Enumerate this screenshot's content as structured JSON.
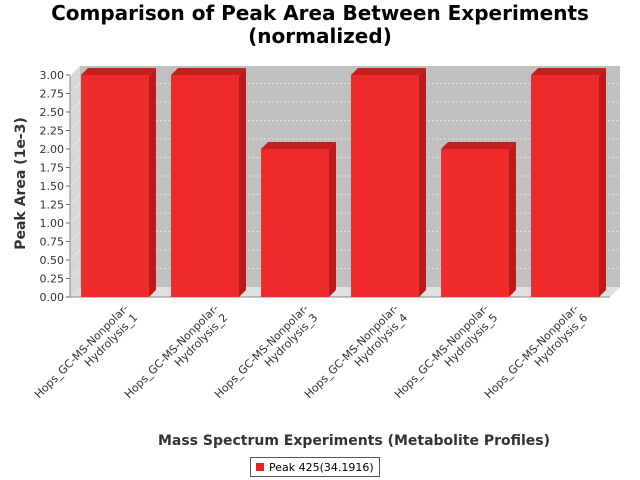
{
  "chart_data": {
    "type": "bar",
    "title": "Comparison of Peak Area Between Experiments",
    "subtitle": "(normalized)",
    "xlabel": "Mass Spectrum Experiments (Metabolite Profiles)",
    "ylabel": "Peak Area (1e-3)",
    "categories": [
      "Hops_GC-MS-Nonpolar-Hydrolysis_1",
      "Hops_GC-MS-Nonpolar-Hydrolysis_2",
      "Hops_GC-MS-Nonpolar-Hydrolysis_3",
      "Hops_GC-MS-Nonpolar-Hydrolysis_4",
      "Hops_GC-MS-Nonpolar-Hydrolysis_5",
      "Hops_GC-MS-Nonpolar-Hydrolysis_6"
    ],
    "category_lines": [
      [
        "Hops_GC-MS-Nonpolar-",
        "Hydrolysis_1"
      ],
      [
        "Hops_GC-MS-Nonpolar-",
        "Hydrolysis_2"
      ],
      [
        "Hops_GC-MS-Nonpolar-",
        "Hydrolysis_3"
      ],
      [
        "Hops_GC-MS-Nonpolar-",
        "Hydrolysis_4"
      ],
      [
        "Hops_GC-MS-Nonpolar-",
        "Hydrolysis_5"
      ],
      [
        "Hops_GC-MS-Nonpolar-",
        "Hydrolysis_6"
      ]
    ],
    "series": [
      {
        "name": "Peak 425(34.1916)",
        "values": [
          3.0,
          3.0,
          2.0,
          3.0,
          2.0,
          3.0
        ],
        "color": "#ee2222"
      }
    ],
    "ylim": [
      0,
      3.0
    ],
    "yticks": [
      "0.00",
      "0.25",
      "0.50",
      "0.75",
      "1.00",
      "1.25",
      "1.50",
      "1.75",
      "2.00",
      "2.25",
      "2.50",
      "2.75",
      "3.00"
    ],
    "grid": true,
    "legend_position": "bottom-center",
    "style": "3d-bar"
  },
  "colors": {
    "plot_background": "#c0c0c0",
    "plot_side_wall": "#d8d8d8",
    "plot_floor": "#e0e0e0",
    "bar_front": "#ee2a2a",
    "bar_top": "#c42020",
    "bar_side": "#b81c1c",
    "gridline": "#ffffff"
  }
}
